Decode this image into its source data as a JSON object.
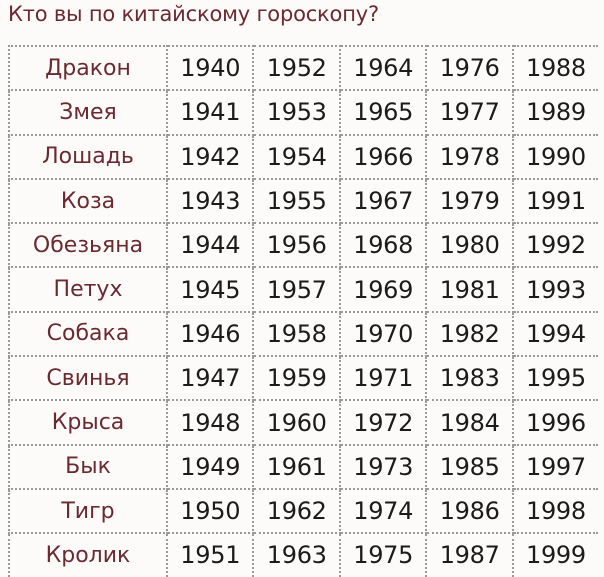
{
  "title": "Кто вы по китайскому гороскопу?",
  "colors": {
    "title": "#6a2a2f",
    "animal_text": "#6a2a2f",
    "year_text": "#1b1b1b",
    "grid": "#9a9a9a"
  },
  "rows": [
    {
      "animal": "Дракон",
      "years": [
        "1940",
        "1952",
        "1964",
        "1976",
        "1988"
      ]
    },
    {
      "animal": "Змея",
      "years": [
        "1941",
        "1953",
        "1965",
        "1977",
        "1989"
      ]
    },
    {
      "animal": "Лошадь",
      "years": [
        "1942",
        "1954",
        "1966",
        "1978",
        "1990"
      ]
    },
    {
      "animal": "Коза",
      "years": [
        "1943",
        "1955",
        "1967",
        "1979",
        "1991"
      ]
    },
    {
      "animal": "Обезьяна",
      "years": [
        "1944",
        "1956",
        "1968",
        "1980",
        "1992"
      ]
    },
    {
      "animal": "Петух",
      "years": [
        "1945",
        "1957",
        "1969",
        "1981",
        "1993"
      ]
    },
    {
      "animal": "Собака",
      "years": [
        "1946",
        "1958",
        "1970",
        "1982",
        "1994"
      ]
    },
    {
      "animal": "Свинья",
      "years": [
        "1947",
        "1959",
        "1971",
        "1983",
        "1995"
      ]
    },
    {
      "animal": "Крыса",
      "years": [
        "1948",
        "1960",
        "1972",
        "1984",
        "1996"
      ]
    },
    {
      "animal": "Бык",
      "years": [
        "1949",
        "1961",
        "1973",
        "1985",
        "1997"
      ]
    },
    {
      "animal": "Тигр",
      "years": [
        "1950",
        "1962",
        "1974",
        "1986",
        "1998"
      ]
    },
    {
      "animal": "Кролик",
      "years": [
        "1951",
        "1963",
        "1975",
        "1987",
        "1999"
      ]
    }
  ]
}
